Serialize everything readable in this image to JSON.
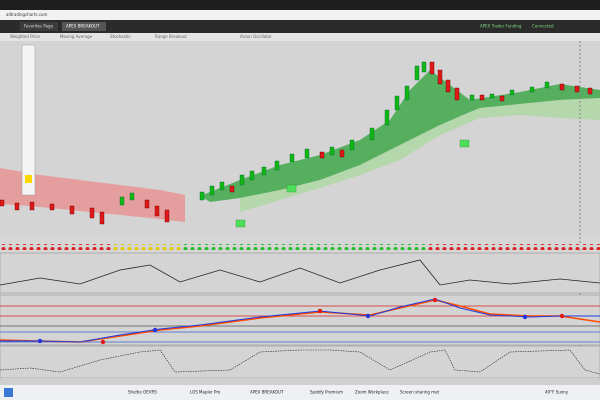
{
  "browser": {
    "address": "alltradingcharts.com"
  },
  "app": {
    "tabs": [
      "Favorites Page",
      "APEX BREAKOUT"
    ],
    "account": "APEX Trader Funding",
    "status": "Connected"
  },
  "indicators": [
    "Weighted Price",
    "Moving Average",
    "Stochastic",
    "Range Breakout",
    "Aroon Oscillator"
  ],
  "taskbar": {
    "items": [
      "Sheltie OEVRS",
      "LOS Mapler Pro",
      "APEX BREAKOUT",
      "Spotify Premium",
      "Zoom Workplace",
      "Screen sharing met"
    ],
    "weather": "49°F Sunny"
  }
}
